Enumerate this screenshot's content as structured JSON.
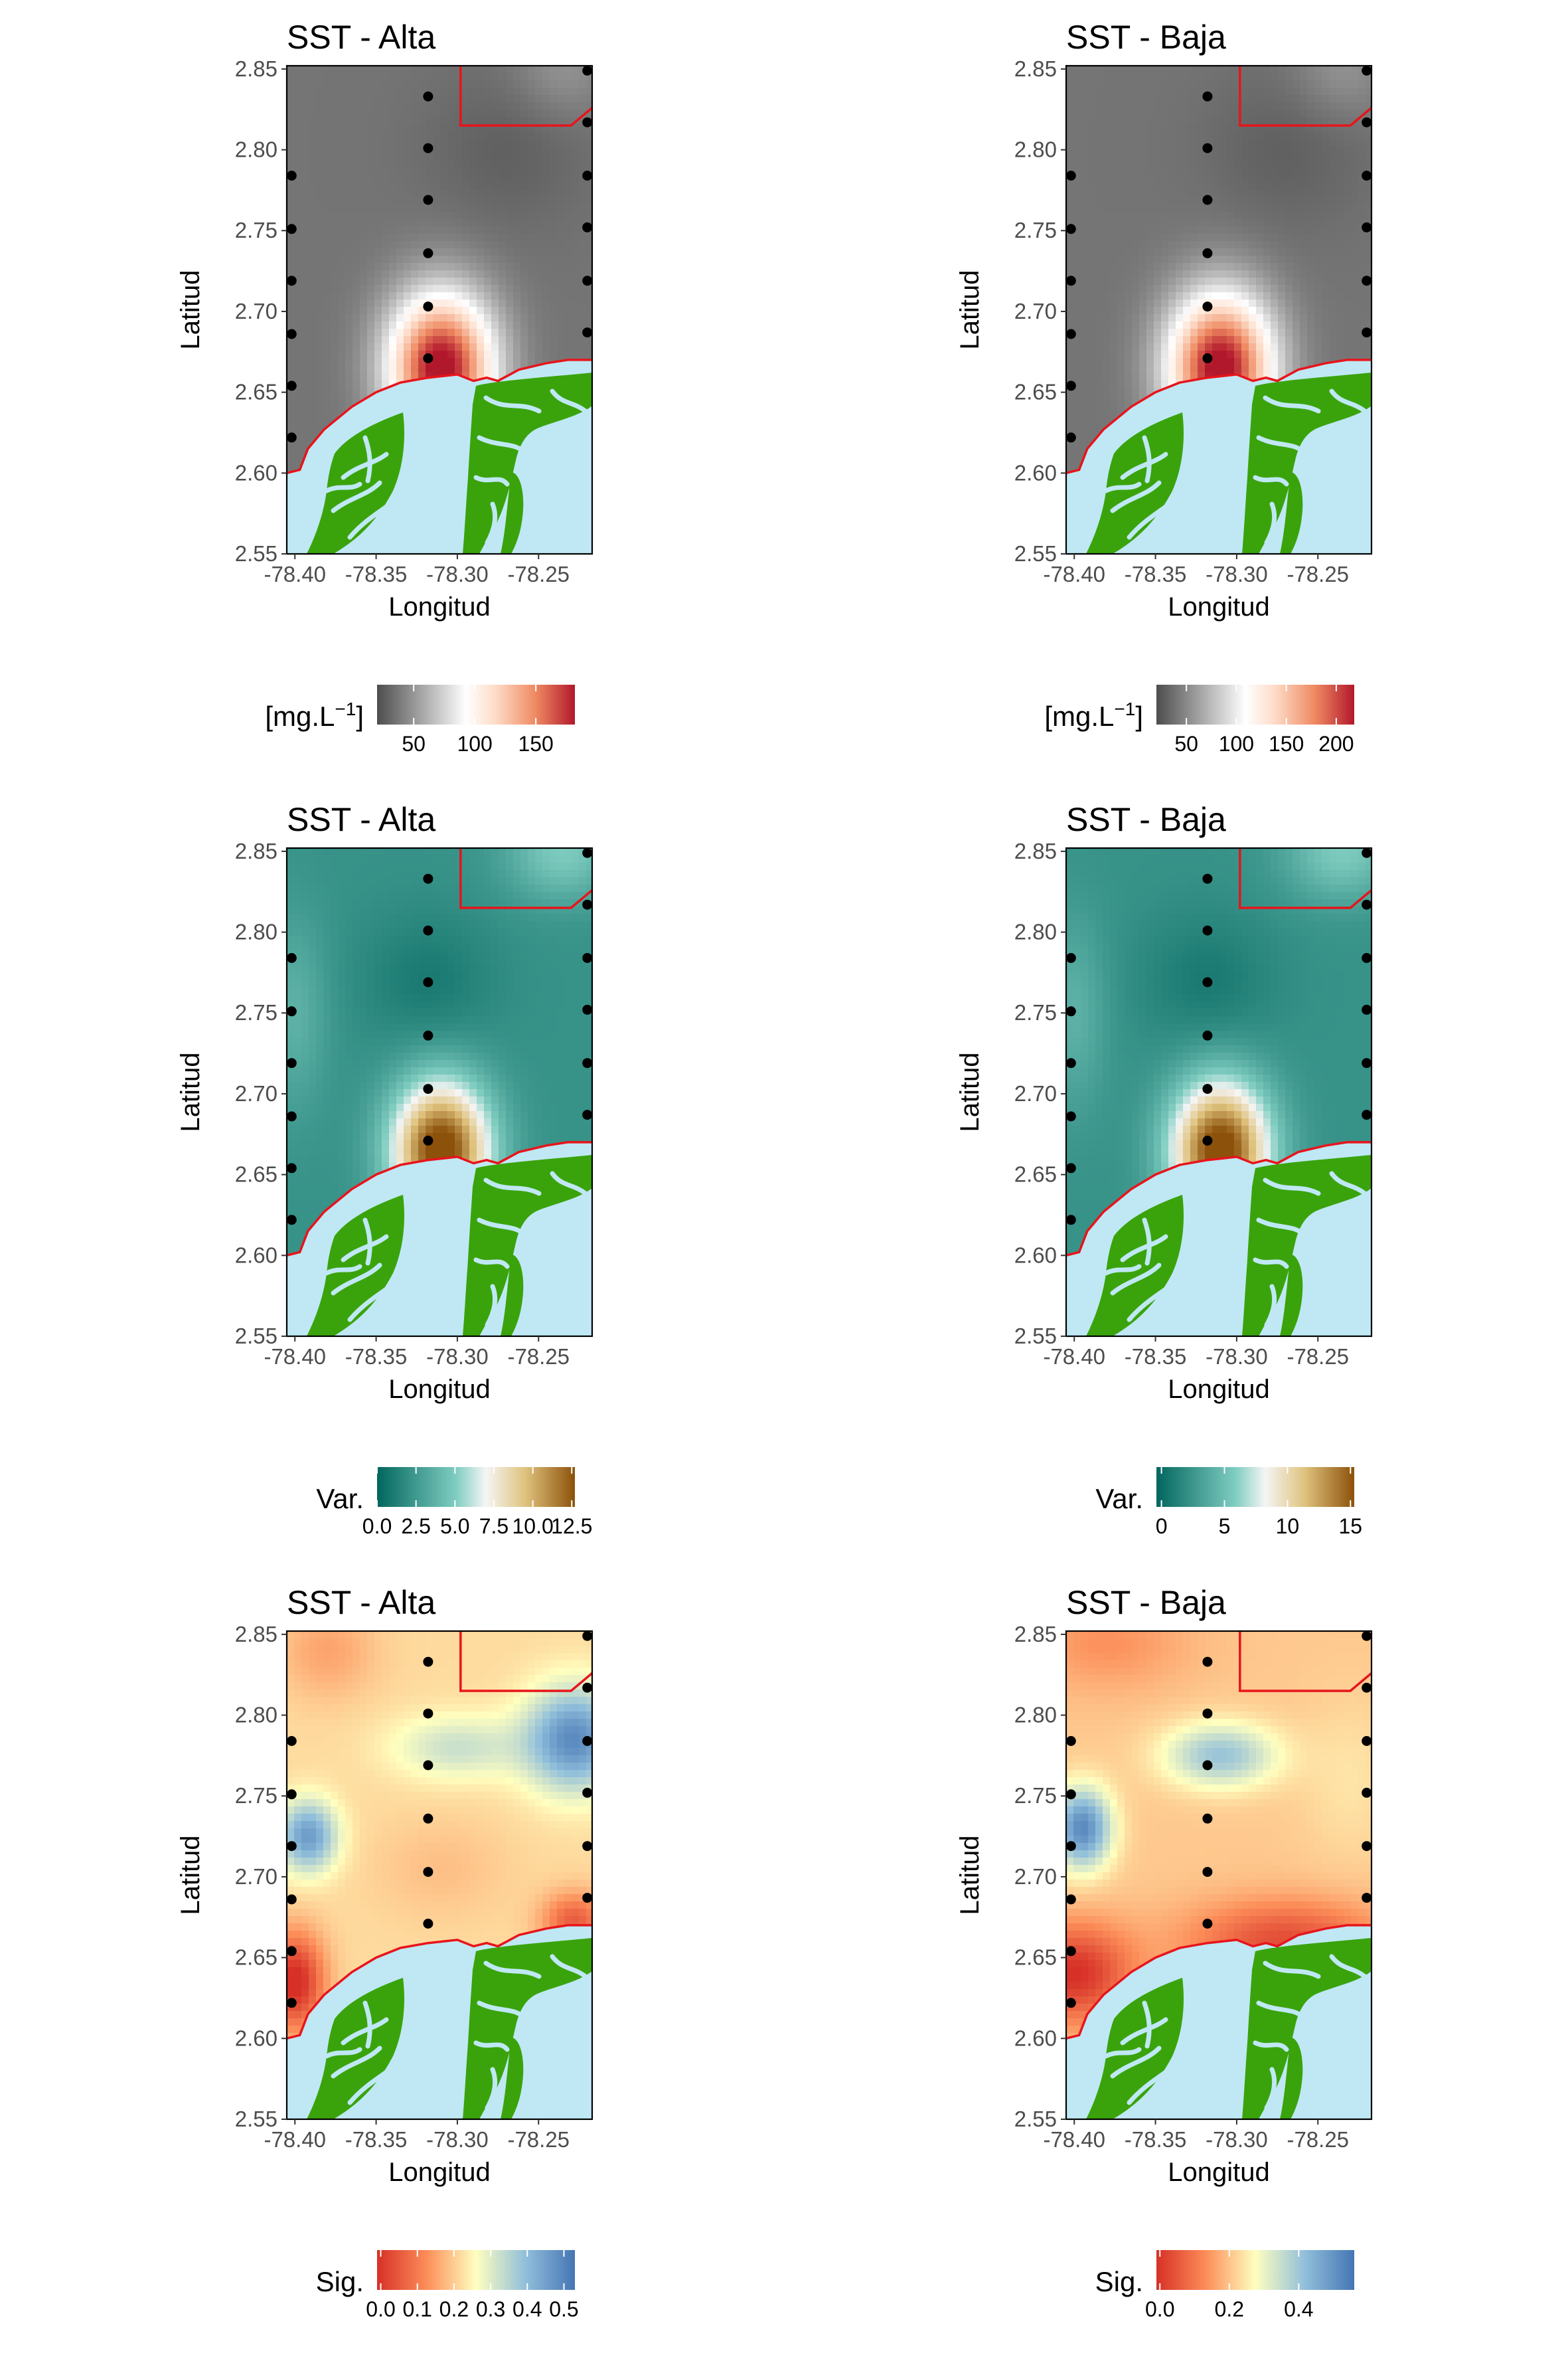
{
  "panels": [
    {
      "title": "SST - Alta",
      "field": "sst",
      "legend": "sst_alta"
    },
    {
      "title": "SST - Baja",
      "field": "sst",
      "legend": "sst_baja"
    },
    {
      "title": "SST - Alta",
      "field": "var",
      "legend": "var_alta"
    },
    {
      "title": "SST - Baja",
      "field": "var",
      "legend": "var_baja"
    },
    {
      "title": "SST - Alta",
      "field": "sig_alta",
      "legend": "sig_alta"
    },
    {
      "title": "SST - Baja",
      "field": "sig_baja",
      "legend": "sig_baja"
    }
  ],
  "axes": {
    "xlabel": "Longitud",
    "ylabel": "Latitud",
    "x_ticks": [
      "-78.40",
      "-78.35",
      "-78.30",
      "-78.25"
    ],
    "x_tick_values": [
      -78.4,
      -78.35,
      -78.3,
      -78.25
    ],
    "y_ticks": [
      "2.55",
      "2.60",
      "2.65",
      "2.70",
      "2.75",
      "2.80",
      "2.85"
    ],
    "y_tick_values": [
      2.55,
      2.6,
      2.65,
      2.7,
      2.75,
      2.8,
      2.85
    ],
    "xlim": [
      -78.405,
      -78.217
    ],
    "ylim": [
      2.55,
      2.852
    ]
  },
  "legends": {
    "sst_alta": {
      "title": "[mg.L",
      "superscript": "−1",
      "title_suffix": "]",
      "ticks": [
        "50",
        "100",
        "150"
      ],
      "tick_values": [
        50,
        100,
        150
      ],
      "range": [
        20,
        182
      ],
      "palette": "gray_red"
    },
    "sst_baja": {
      "title": "[mg.L",
      "superscript": "−1",
      "title_suffix": "]",
      "ticks": [
        "50",
        "100",
        "150",
        "200"
      ],
      "tick_values": [
        50,
        100,
        150,
        200
      ],
      "range": [
        20,
        218
      ],
      "palette": "gray_red"
    },
    "var_alta": {
      "title": "Var.",
      "ticks": [
        "0.0",
        "2.5",
        "5.0",
        "7.5",
        "10.0",
        "12.5"
      ],
      "tick_values": [
        0,
        2.5,
        5.0,
        7.5,
        10.0,
        12.5
      ],
      "range": [
        0,
        12.7
      ],
      "palette": "teal_brown"
    },
    "var_baja": {
      "title": "Var.",
      "ticks": [
        "0",
        "5",
        "10",
        "15"
      ],
      "tick_values": [
        0,
        5,
        10,
        15
      ],
      "range": [
        -0.4,
        15.3
      ],
      "palette": "teal_brown"
    },
    "sig_alta": {
      "title": "Sig.",
      "ticks": [
        "0.0",
        "0.1",
        "0.2",
        "0.3",
        "0.4",
        "0.5"
      ],
      "tick_values": [
        0,
        0.1,
        0.2,
        0.3,
        0.4,
        0.5
      ],
      "range": [
        -0.01,
        0.53
      ],
      "palette": "red_blue"
    },
    "sig_baja": {
      "title": "Sig.",
      "ticks": [
        "0.0",
        "0.2",
        "0.4"
      ],
      "tick_values": [
        0,
        0.2,
        0.4
      ],
      "range": [
        -0.01,
        0.56
      ],
      "palette": "red_blue"
    }
  },
  "colors": {
    "land": "#3aa30b",
    "water": "#bfe8f4",
    "boundary": "#e8141b",
    "stations": "#000000",
    "axis_text": "#4d4d4d"
  },
  "stations": [
    {
      "lon": -78.402,
      "lat": 2.784
    },
    {
      "lon": -78.402,
      "lat": 2.751
    },
    {
      "lon": -78.402,
      "lat": 2.719
    },
    {
      "lon": -78.402,
      "lat": 2.686
    },
    {
      "lon": -78.402,
      "lat": 2.654
    },
    {
      "lon": -78.402,
      "lat": 2.622
    },
    {
      "lon": -78.318,
      "lat": 2.833
    },
    {
      "lon": -78.318,
      "lat": 2.801
    },
    {
      "lon": -78.318,
      "lat": 2.769
    },
    {
      "lon": -78.318,
      "lat": 2.736
    },
    {
      "lon": -78.318,
      "lat": 2.703
    },
    {
      "lon": -78.318,
      "lat": 2.671
    },
    {
      "lon": -78.22,
      "lat": 2.849
    },
    {
      "lon": -78.22,
      "lat": 2.817
    },
    {
      "lon": -78.22,
      "lat": 2.784
    },
    {
      "lon": -78.22,
      "lat": 2.752
    },
    {
      "lon": -78.22,
      "lat": 2.719
    },
    {
      "lon": -78.22,
      "lat": 2.687
    }
  ],
  "coastline": [
    [
      -78.405,
      2.6
    ],
    [
      -78.397,
      2.602
    ],
    [
      -78.392,
      2.615
    ],
    [
      -78.382,
      2.627
    ],
    [
      -78.365,
      2.641
    ],
    [
      -78.35,
      2.65
    ],
    [
      -78.335,
      2.656
    ],
    [
      -78.318,
      2.659
    ],
    [
      -78.3,
      2.661
    ],
    [
      -78.29,
      2.657
    ],
    [
      -78.282,
      2.659
    ],
    [
      -78.275,
      2.657
    ],
    [
      -78.262,
      2.664
    ],
    [
      -78.245,
      2.668
    ],
    [
      -78.232,
      2.67
    ],
    [
      -78.217,
      2.67
    ]
  ],
  "boundary_box": [
    [
      -78.298,
      2.852
    ],
    [
      -78.298,
      2.815
    ],
    [
      -78.23,
      2.815
    ],
    [
      -78.217,
      2.826
    ]
  ],
  "chart_data": [
    {
      "type": "heatmap",
      "title": "SST - Alta",
      "xlabel": "Longitud",
      "ylabel": "Latitud",
      "xlim": [
        -78.405,
        -78.217
      ],
      "ylim": [
        2.55,
        2.852
      ],
      "colorbar_title": "[mg.L−1]",
      "colorbar_range": [
        20,
        182
      ],
      "grid": false,
      "hotspots": [
        {
          "lon": -78.31,
          "lat": 2.665,
          "value": 180
        }
      ],
      "background_value": 30
    },
    {
      "type": "heatmap",
      "title": "SST - Baja",
      "xlabel": "Longitud",
      "ylabel": "Latitud",
      "xlim": [
        -78.405,
        -78.217
      ],
      "ylim": [
        2.55,
        2.852
      ],
      "colorbar_title": "[mg.L−1]",
      "colorbar_range": [
        20,
        218
      ],
      "grid": false,
      "hotspots": [
        {
          "lon": -78.31,
          "lat": 2.665,
          "value": 215
        }
      ],
      "background_value": 30
    },
    {
      "type": "heatmap",
      "title": "SST - Alta",
      "xlabel": "Longitud",
      "ylabel": "Latitud",
      "xlim": [
        -78.405,
        -78.217
      ],
      "ylim": [
        2.55,
        2.852
      ],
      "colorbar_title": "Var.",
      "colorbar_range": [
        0,
        12.7
      ],
      "grid": false,
      "hotspots": [
        {
          "lon": -78.31,
          "lat": 2.665,
          "value": 12.2
        }
      ],
      "background_value": 2.0
    },
    {
      "type": "heatmap",
      "title": "SST - Baja",
      "xlabel": "Longitud",
      "ylabel": "Latitud",
      "xlim": [
        -78.405,
        -78.217
      ],
      "ylim": [
        2.55,
        2.852
      ],
      "colorbar_title": "Var.",
      "colorbar_range": [
        -0.4,
        15.3
      ],
      "grid": false,
      "hotspots": [
        {
          "lon": -78.31,
          "lat": 2.665,
          "value": 14.5
        }
      ],
      "background_value": 1.0
    },
    {
      "type": "heatmap",
      "title": "SST - Alta",
      "xlabel": "Longitud",
      "ylabel": "Latitud",
      "xlim": [
        -78.405,
        -78.217
      ],
      "ylim": [
        2.55,
        2.852
      ],
      "colorbar_title": "Sig.",
      "colorbar_range": [
        -0.01,
        0.53
      ],
      "grid": false,
      "notes": "high values at (-78.395,2.725) and (-78.225,2.785); low values near coast at (-78.40,2.635) and (-78.23,2.67)"
    },
    {
      "type": "heatmap",
      "title": "SST - Baja",
      "xlabel": "Longitud",
      "ylabel": "Latitud",
      "xlim": [
        -78.405,
        -78.217
      ],
      "ylim": [
        2.55,
        2.852
      ],
      "colorbar_title": "Sig.",
      "colorbar_range": [
        -0.01,
        0.56
      ],
      "grid": false,
      "notes": "high value at (-78.395,2.73); low values along the coast"
    }
  ]
}
